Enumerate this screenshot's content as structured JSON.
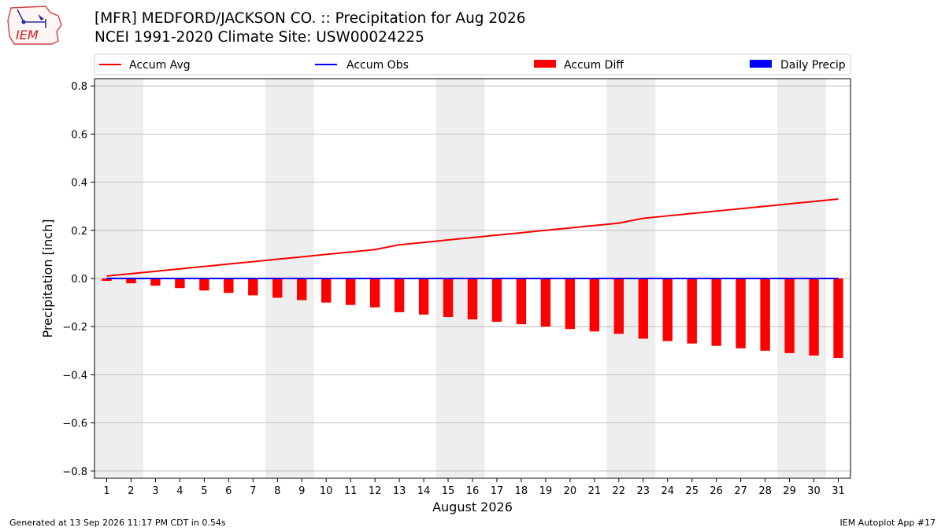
{
  "header": {
    "logo_text": "IEM",
    "title": "[MFR] MEDFORD/JACKSON CO. :: Precipitation for Aug 2026",
    "subtitle": "NCEI 1991-2020 Climate Site: USW00024225"
  },
  "footer": {
    "left": "Generated at 13 Sep 2026 11:17 PM CDT in 0.54s",
    "right": "IEM Autoplot App #17"
  },
  "colors": {
    "accum_avg": "#ff0000",
    "accum_obs": "#0000ff",
    "accum_diff": "#ff0000",
    "daily_precip": "#0000ff",
    "weekend_shade": "#eeeeee",
    "grid": "#b0b0b0"
  },
  "chart_data": {
    "type": "bar",
    "xlabel": "August 2026",
    "ylabel": "Precipitation [inch]",
    "ylim": [
      -0.83,
      0.83
    ],
    "xlim": [
      0.5,
      31.5
    ],
    "yticks": [
      -0.8,
      -0.6,
      -0.4,
      -0.2,
      0.0,
      0.2,
      0.4,
      0.6,
      0.8
    ],
    "ytick_labels": [
      "−0.8",
      "−0.6",
      "−0.4",
      "−0.2",
      "0.0",
      "0.2",
      "0.4",
      "0.6",
      "0.8"
    ],
    "grid": "horizontal",
    "legend_position": "top",
    "weekend_shading": [
      [
        0.5,
        2.5
      ],
      [
        7.5,
        9.5
      ],
      [
        14.5,
        16.5
      ],
      [
        21.5,
        23.5
      ],
      [
        28.5,
        30.5
      ]
    ],
    "x": [
      1,
      2,
      3,
      4,
      5,
      6,
      7,
      8,
      9,
      10,
      11,
      12,
      13,
      14,
      15,
      16,
      17,
      18,
      19,
      20,
      21,
      22,
      23,
      24,
      25,
      26,
      27,
      28,
      29,
      30,
      31
    ],
    "series": [
      {
        "name": "Accum Avg",
        "type": "line",
        "values": [
          0.01,
          0.02,
          0.03,
          0.04,
          0.05,
          0.06,
          0.07,
          0.08,
          0.09,
          0.1,
          0.11,
          0.12,
          0.14,
          0.15,
          0.16,
          0.17,
          0.18,
          0.19,
          0.2,
          0.21,
          0.22,
          0.23,
          0.25,
          0.26,
          0.27,
          0.28,
          0.29,
          0.3,
          0.31,
          0.32,
          0.33
        ]
      },
      {
        "name": "Accum Obs",
        "type": "line",
        "values": [
          0,
          0,
          0,
          0,
          0,
          0,
          0,
          0,
          0,
          0,
          0,
          0,
          0,
          0,
          0,
          0,
          0,
          0,
          0,
          0,
          0,
          0,
          0,
          0,
          0,
          0,
          0,
          0,
          0,
          0,
          0
        ]
      },
      {
        "name": "Accum Diff",
        "type": "bar",
        "values": [
          -0.01,
          -0.02,
          -0.03,
          -0.04,
          -0.05,
          -0.06,
          -0.07,
          -0.08,
          -0.09,
          -0.1,
          -0.11,
          -0.12,
          -0.14,
          -0.15,
          -0.16,
          -0.17,
          -0.18,
          -0.19,
          -0.2,
          -0.21,
          -0.22,
          -0.23,
          -0.25,
          -0.26,
          -0.27,
          -0.28,
          -0.29,
          -0.3,
          -0.31,
          -0.32,
          -0.33
        ]
      },
      {
        "name": "Daily Precip",
        "type": "bar",
        "values": [
          0,
          0,
          0,
          0,
          0,
          0,
          0,
          0,
          0,
          0,
          0,
          0,
          0,
          0,
          0,
          0,
          0,
          0,
          0,
          0,
          0,
          0,
          0,
          0,
          0,
          0,
          0,
          0,
          0,
          0,
          0
        ]
      }
    ]
  }
}
